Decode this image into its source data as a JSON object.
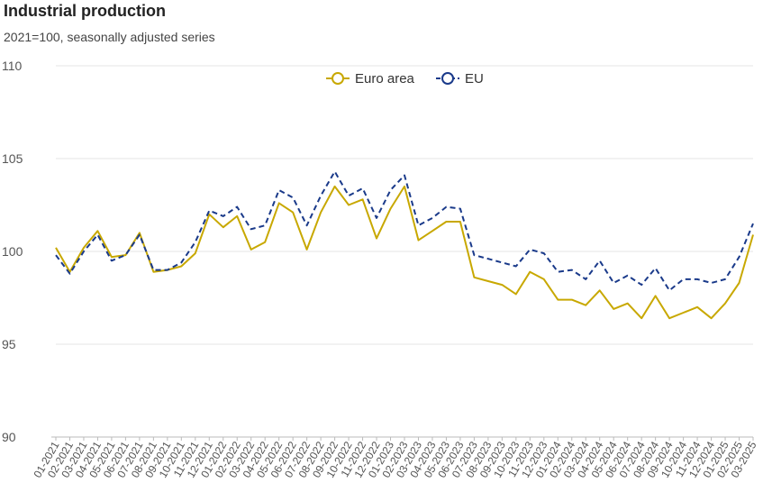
{
  "chart_data": {
    "type": "line",
    "title": "Industrial production",
    "subtitle": "2021=100, seasonally adjusted series",
    "xlabel": "",
    "ylabel": "",
    "ylim": [
      90,
      110
    ],
    "yticks": [
      90,
      95,
      100,
      105,
      110
    ],
    "grid": true,
    "legend": "top-center",
    "categories": [
      "01-2021",
      "02-2021",
      "03-2021",
      "04-2021",
      "05-2021",
      "06-2021",
      "07-2021",
      "08-2021",
      "09-2021",
      "10-2021",
      "11-2021",
      "12-2021",
      "01-2022",
      "02-2022",
      "03-2022",
      "04-2022",
      "05-2022",
      "06-2022",
      "07-2022",
      "08-2022",
      "09-2022",
      "10-2022",
      "11-2022",
      "12-2022",
      "01-2023",
      "02-2023",
      "03-2023",
      "04-2023",
      "05-2023",
      "06-2023",
      "07-2023",
      "08-2023",
      "09-2023",
      "10-2023",
      "11-2023",
      "12-2023",
      "01-2024",
      "02-2024",
      "03-2024",
      "04-2024",
      "05-2024",
      "06-2024",
      "07-2024",
      "08-2024",
      "09-2024",
      "10-2024",
      "11-2024",
      "12-2024",
      "01-2025",
      "02-2025",
      "03-2025"
    ],
    "series": [
      {
        "name": "Euro area",
        "color": "#c8a800",
        "dash": "solid",
        "values": [
          100.2,
          98.9,
          100.2,
          101.1,
          99.7,
          99.8,
          101.0,
          98.9,
          99.0,
          99.2,
          99.9,
          102.0,
          101.3,
          101.9,
          100.1,
          100.5,
          102.6,
          102.1,
          100.1,
          102.1,
          103.5,
          102.5,
          102.8,
          100.7,
          102.3,
          103.5,
          100.6,
          101.1,
          101.6,
          101.6,
          98.6,
          98.4,
          98.2,
          97.7,
          98.9,
          98.5,
          97.4,
          97.4,
          97.1,
          97.9,
          96.9,
          97.2,
          96.4,
          97.6,
          96.4,
          96.7,
          97.0,
          96.4,
          97.2,
          98.3,
          100.9
        ]
      },
      {
        "name": "EU",
        "color": "#1a3a8a",
        "dash": "dashed",
        "values": [
          99.8,
          98.8,
          100.0,
          100.9,
          99.5,
          99.8,
          100.9,
          99.0,
          99.0,
          99.4,
          100.5,
          102.2,
          101.9,
          102.4,
          101.2,
          101.4,
          103.3,
          102.9,
          101.4,
          103.0,
          104.3,
          103.0,
          103.4,
          101.8,
          103.3,
          104.1,
          101.4,
          101.8,
          102.4,
          102.3,
          99.8,
          99.6,
          99.4,
          99.2,
          100.1,
          99.9,
          98.9,
          99.0,
          98.5,
          99.5,
          98.3,
          98.7,
          98.2,
          99.1,
          97.9,
          98.5,
          98.5,
          98.3,
          98.5,
          99.7,
          101.5
        ]
      }
    ]
  }
}
